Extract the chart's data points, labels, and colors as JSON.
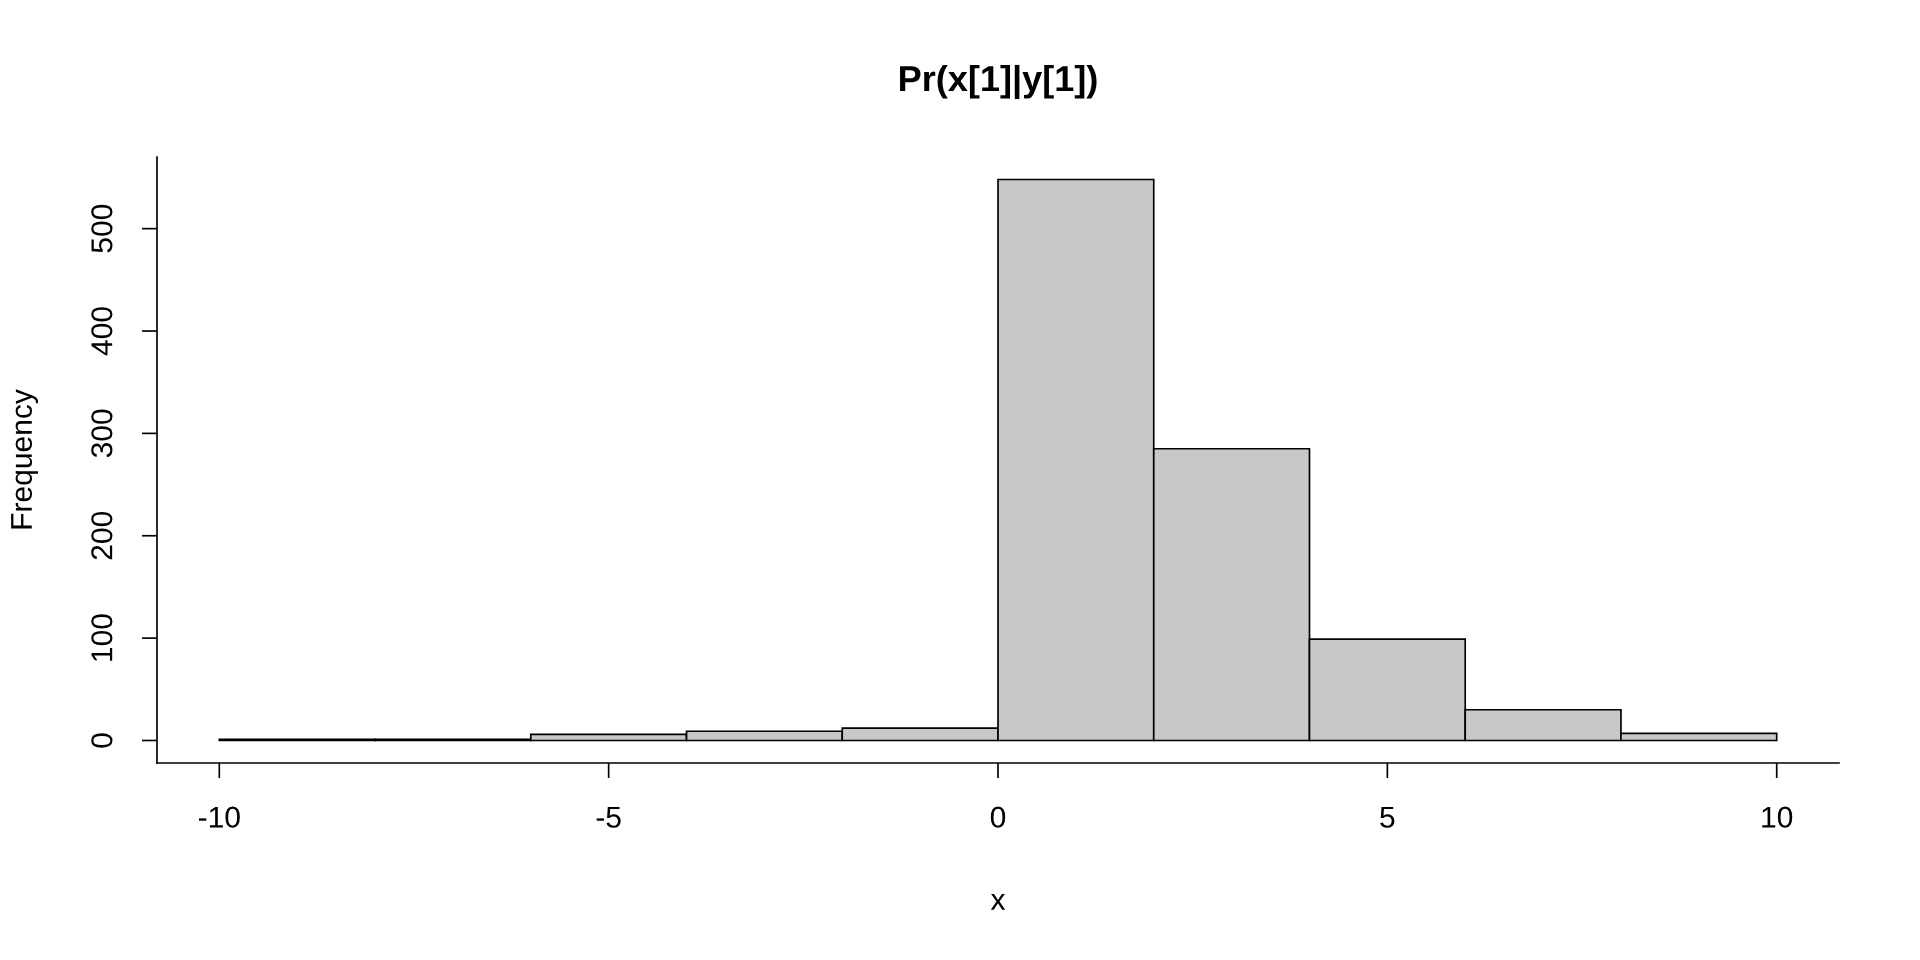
{
  "chart_data": {
    "type": "histogram",
    "title": "Pr(x[1]|y[1])",
    "xlabel": "x",
    "ylabel": "Frequency",
    "bins": [
      -10,
      -8,
      -6,
      -4,
      -2,
      0,
      2,
      4,
      6,
      8,
      10
    ],
    "values": [
      1,
      1,
      6,
      9,
      12,
      548,
      285,
      99,
      30,
      7
    ],
    "color": "#c8c8c8",
    "xlim": [
      -10.8,
      10.8
    ],
    "ylim": [
      -22,
      570
    ],
    "xticks": [
      -10,
      -5,
      0,
      5,
      10
    ],
    "yticks": [
      0,
      100,
      200,
      300,
      400,
      500
    ],
    "grid": false
  }
}
